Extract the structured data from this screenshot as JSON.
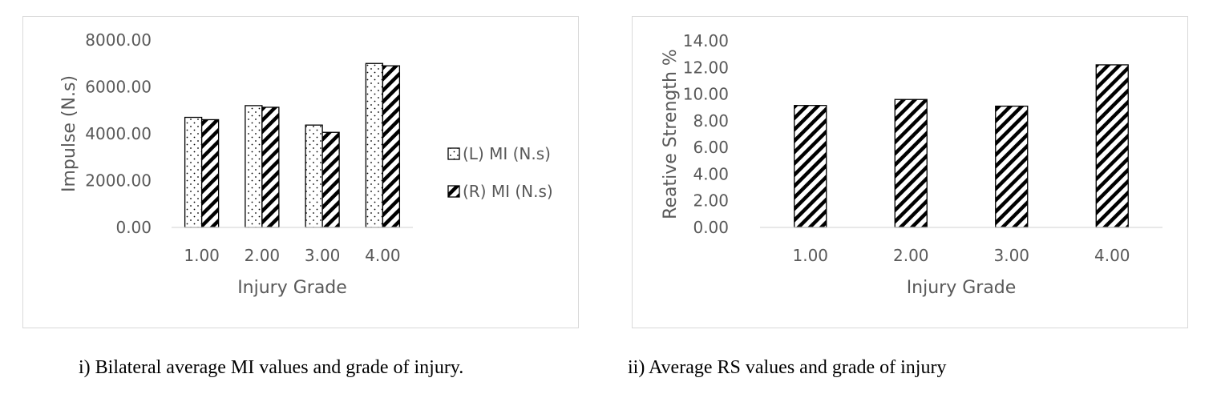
{
  "chart_data": [
    {
      "type": "bar",
      "title": "",
      "xlabel": "Injury Grade",
      "ylabel": "Impulse (N.s)",
      "categories": [
        "1.00",
        "2.00",
        "3.00",
        "4.00"
      ],
      "yticks": [
        "0.00",
        "2000.00",
        "4000.00",
        "6000.00",
        "8000.00"
      ],
      "ylim": [
        0,
        8000
      ],
      "grid": false,
      "legend": "right",
      "series": [
        {
          "name": "(L) MI (N.s)",
          "pattern": "dots",
          "values": [
            4700,
            5200,
            4370,
            7000
          ]
        },
        {
          "name": "(R) MI (N.s)",
          "pattern": "stripes",
          "values": [
            4600,
            5130,
            4060,
            6900
          ]
        }
      ]
    },
    {
      "type": "bar",
      "title": "",
      "xlabel": "Injury Grade",
      "ylabel": "Reative Strength %",
      "categories": [
        "1.00",
        "2.00",
        "3.00",
        "4.00"
      ],
      "yticks": [
        "0.00",
        "2.00",
        "4.00",
        "6.00",
        "8.00",
        "10.00",
        "12.00",
        "14.00"
      ],
      "ylim": [
        0,
        14
      ],
      "grid": false,
      "legend": "none",
      "series": [
        {
          "pattern": "stripes",
          "values": [
            9.15,
            9.6,
            9.1,
            12.2
          ]
        }
      ]
    }
  ],
  "captions": {
    "left": "i) Bilateral average MI values and grade of injury.",
    "right": "ii) Average RS values and grade of injury"
  }
}
